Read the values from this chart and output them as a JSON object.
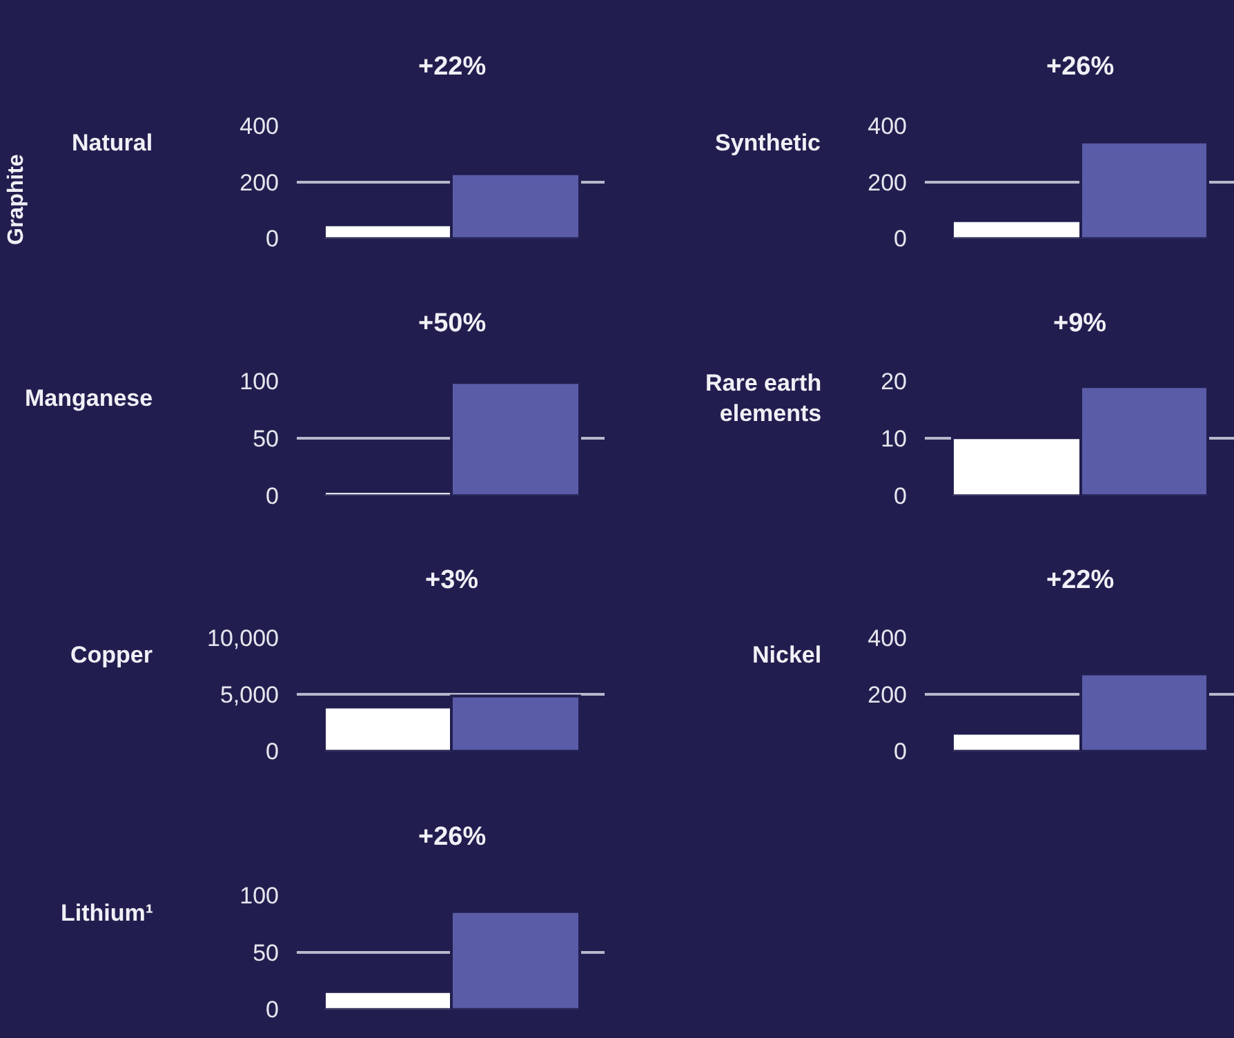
{
  "chart_data": [
    {
      "type": "bar",
      "title": "Natural",
      "ylabel": "Graphite",
      "categories": [
        null,
        null
      ],
      "values": [
        50,
        230
      ],
      "colors": [
        "#ffffff",
        "#5a5ca8"
      ],
      "ylim": [
        0,
        400
      ],
      "yticks": [
        0,
        200,
        400
      ],
      "grid": "y",
      "annotations": [
        "+22%"
      ]
    },
    {
      "type": "bar",
      "title": "Synthetic",
      "categories": [
        null,
        null
      ],
      "values": [
        65,
        340
      ],
      "colors": [
        "#ffffff",
        "#5a5ca8"
      ],
      "ylim": [
        0,
        400
      ],
      "yticks": [
        0,
        200,
        400
      ],
      "grid": "y",
      "annotations": [
        "+26%"
      ]
    },
    {
      "type": "bar",
      "title": "Manganese",
      "categories": [
        null,
        null
      ],
      "values": [
        4,
        99
      ],
      "colors": [
        "#ffffff",
        "#5a5ca8"
      ],
      "ylim": [
        0,
        100
      ],
      "yticks": [
        0,
        50,
        100
      ],
      "grid": "y",
      "annotations": [
        "+50%"
      ]
    },
    {
      "type": "bar",
      "title": "Rare earth elements",
      "categories": [
        null,
        null
      ],
      "values": [
        10,
        19
      ],
      "colors": [
        "#ffffff",
        "#5a5ca8"
      ],
      "ylim": [
        0,
        20
      ],
      "yticks": [
        0,
        10,
        20
      ],
      "grid": "y",
      "annotations": [
        "+9%"
      ]
    },
    {
      "type": "bar",
      "title": "Copper",
      "categories": [
        null,
        null
      ],
      "values": [
        3900,
        4900
      ],
      "colors": [
        "#ffffff",
        "#5a5ca8"
      ],
      "ylim": [
        0,
        10000
      ],
      "yticks": [
        0,
        {
          "value": 5000,
          "label": "5,000"
        },
        {
          "value": 10000,
          "label": "10,000"
        }
      ],
      "grid": "y",
      "annotations": [
        "+3%"
      ]
    },
    {
      "type": "bar",
      "title": "Nickel",
      "categories": [
        null,
        null
      ],
      "values": [
        65,
        275
      ],
      "colors": [
        "#ffffff",
        "#5a5ca8"
      ],
      "ylim": [
        0,
        400
      ],
      "yticks": [
        0,
        200,
        400
      ],
      "grid": "y",
      "annotations": [
        "+22%"
      ]
    },
    {
      "type": "bar",
      "title": "Lithium¹",
      "categories": [
        null,
        null
      ],
      "values": [
        16,
        86
      ],
      "colors": [
        "#ffffff",
        "#5a5ca8"
      ],
      "ylim": [
        0,
        100
      ],
      "yticks": [
        0,
        50,
        100
      ],
      "grid": "y",
      "annotations": [
        "+26%"
      ]
    }
  ]
}
